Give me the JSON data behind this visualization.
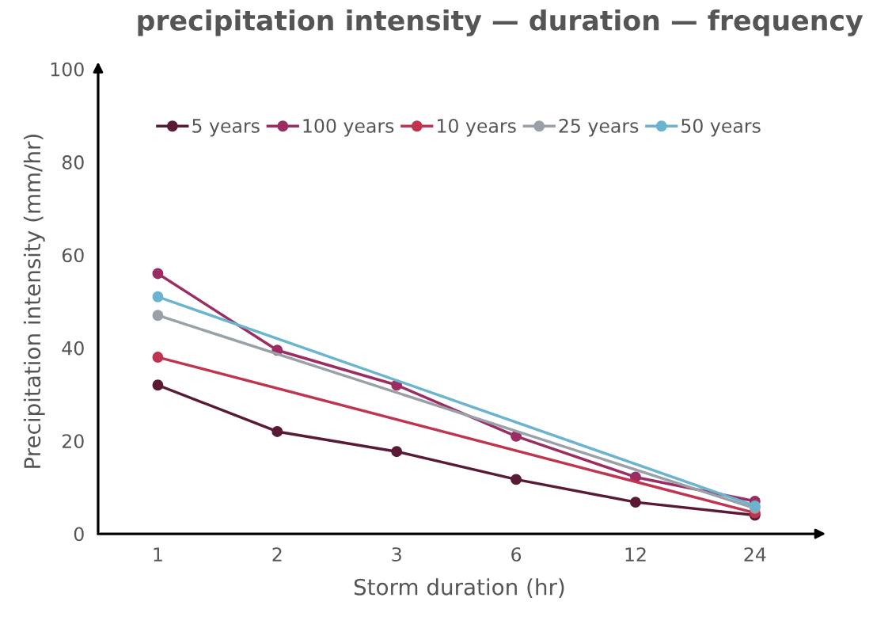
{
  "chart_data": {
    "type": "line",
    "title": "precipitation intensity — duration — frequency",
    "xlabel": "Storm duration (hr)",
    "ylabel": "Precipitation intensity (mm/hr)",
    "categories": [
      "1",
      "2",
      "3",
      "6",
      "12",
      "24"
    ],
    "series": [
      {
        "name": "5 years",
        "color": "#5a1a35",
        "values": [
          32,
          22,
          17.7,
          11.7,
          6.8,
          4
        ]
      },
      {
        "name": "100 years",
        "color": "#9b2d62",
        "values": [
          56,
          39.5,
          32,
          21,
          12.2,
          7
        ]
      },
      {
        "name": "10 years",
        "color": "#c0344f",
        "values": [
          38,
          null,
          null,
          null,
          null,
          4.5
        ]
      },
      {
        "name": "25 years",
        "color": "#9aa0a8",
        "values": [
          47,
          null,
          null,
          null,
          null,
          5.5
        ]
      },
      {
        "name": "50 years",
        "color": "#6ab4cf",
        "values": [
          51,
          null,
          null,
          null,
          null,
          6
        ]
      }
    ],
    "ylim": [
      0,
      100
    ],
    "yticks": [
      0,
      20,
      40,
      60,
      80,
      100
    ],
    "legend": "top",
    "marker": "circle",
    "line_style": "solid"
  }
}
